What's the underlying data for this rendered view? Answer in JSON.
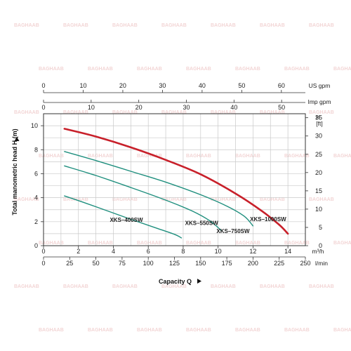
{
  "chart_data": {
    "type": "line",
    "title": "",
    "ylabel": "Total manometric head H (m)",
    "xlabel": "Capacity Q",
    "ylim": [
      0,
      11
    ],
    "xlim_m3h": [
      0,
      15
    ],
    "y_ticks": [
      "0",
      "2",
      "4",
      "6",
      "8",
      "10"
    ],
    "ft_ticks": [
      "0",
      "5",
      "10",
      "15",
      "20",
      "25",
      "30",
      "35"
    ],
    "ft_label": "H",
    "ft_unit": "[ft]",
    "m3h_ticks": [
      "0",
      "2",
      "4",
      "6",
      "8",
      "10",
      "12",
      "14"
    ],
    "m3h_unit": "m³/h",
    "lmin_ticks": [
      "0",
      "25",
      "50",
      "75",
      "100",
      "125",
      "150",
      "175",
      "200",
      "225",
      "250"
    ],
    "lmin_unit": "l/min",
    "usgpm_ticks": [
      "0",
      "10",
      "20",
      "30",
      "40",
      "50",
      "60"
    ],
    "usgpm_unit": "US gpm",
    "impgpm_ticks": [
      "0",
      "10",
      "20",
      "30",
      "40",
      "50"
    ],
    "impgpm_unit": "Imp gpm",
    "grid": true,
    "watermark_text": "BAGHAAB",
    "series": [
      {
        "name": "XKS–1000SW",
        "color": "#c8202a",
        "x": [
          1.2,
          3,
          5,
          7,
          9,
          11,
          12.5,
          13.5,
          14
        ],
        "y": [
          9.75,
          9.1,
          8.2,
          7.15,
          5.95,
          4.35,
          2.9,
          1.75,
          1.0
        ]
      },
      {
        "name": "XKS–750SW",
        "color": "#1f8f7e",
        "x": [
          1.2,
          3,
          5,
          7,
          9,
          10.5,
          11.5,
          12
        ],
        "y": [
          7.85,
          7.1,
          6.2,
          5.3,
          4.25,
          3.3,
          2.45,
          1.65
        ]
      },
      {
        "name": "XKS–550SW",
        "color": "#1f8f7e",
        "x": [
          1.2,
          3,
          5,
          7,
          8.5,
          9.5,
          10.2
        ],
        "y": [
          6.65,
          5.85,
          4.85,
          3.8,
          2.9,
          2.1,
          1.25
        ]
      },
      {
        "name": "XKS–400SW",
        "color": "#1f8f7e",
        "x": [
          1.2,
          3,
          5,
          6.5,
          7.5,
          7.9
        ],
        "y": [
          4.15,
          3.25,
          2.2,
          1.45,
          0.95,
          0.65
        ]
      }
    ]
  }
}
